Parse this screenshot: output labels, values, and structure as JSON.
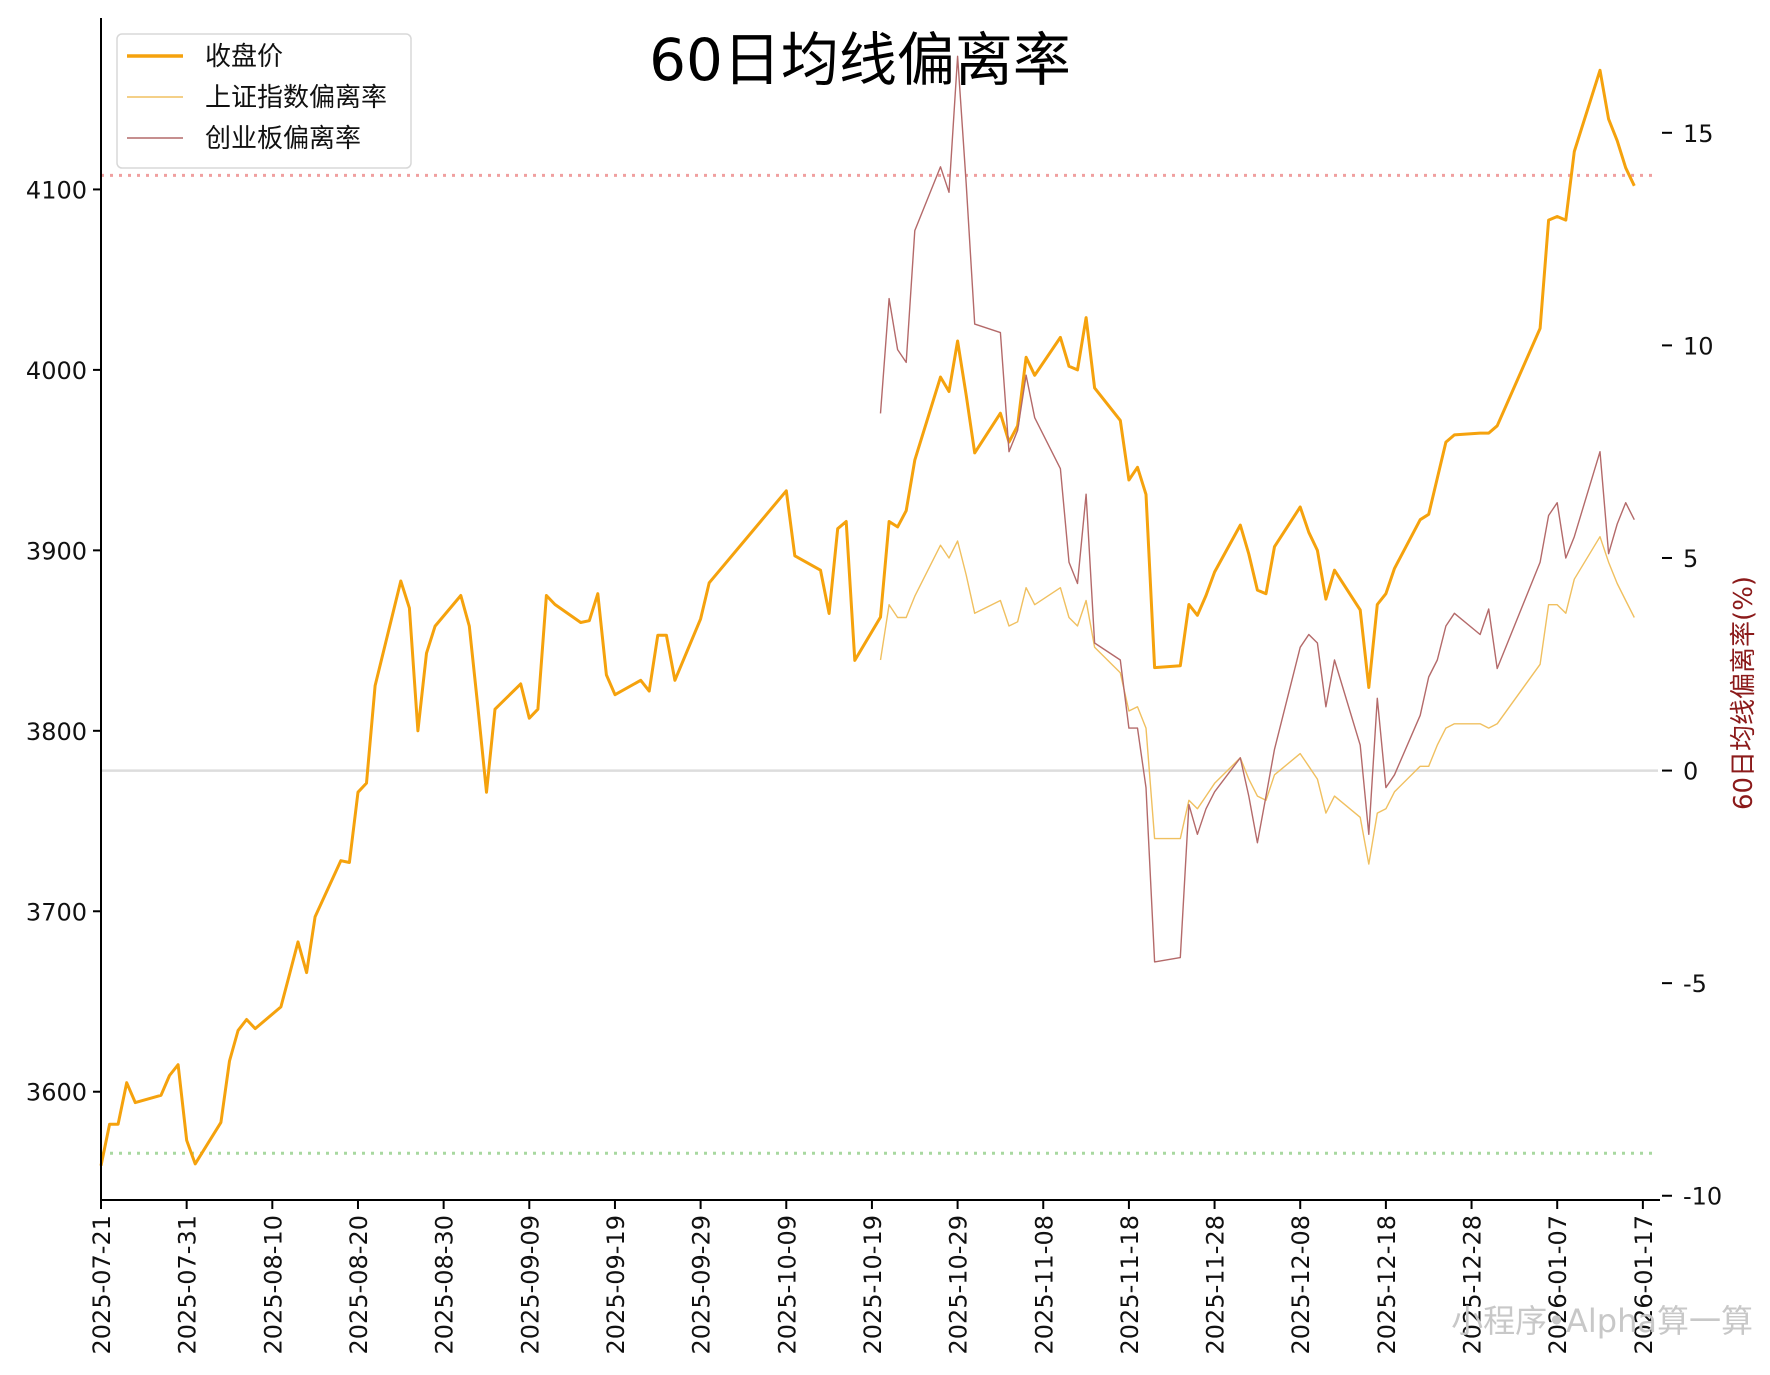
{
  "chart_data": {
    "type": "line",
    "title": "60日均线偏离率",
    "ylabel_right": "60日均线偏离率(%)",
    "watermark": "小程序•Alpha算一算",
    "left_axis": {
      "ylim": [
        3540,
        4195
      ],
      "ticks": [
        3600,
        3700,
        3800,
        3900,
        4000,
        4100
      ]
    },
    "right_axis": {
      "ylim": [
        -10.1,
        17.7
      ],
      "ticks": [
        15,
        10,
        5,
        0,
        -5,
        -10
      ]
    },
    "x_axis": {
      "start": "2025-07-21",
      "end": "2026-01-19",
      "ticks": [
        "2025-07-21",
        "2025-07-31",
        "2025-08-10",
        "2025-08-20",
        "2025-08-30",
        "2025-09-09",
        "2025-09-19",
        "2025-09-29",
        "2025-10-09",
        "2025-10-19",
        "2025-10-29",
        "2025-11-08",
        "2025-11-18",
        "2025-11-28",
        "2025-12-08",
        "2025-12-18",
        "2025-12-28",
        "2026-01-07",
        "2026-01-17"
      ]
    },
    "legend": {
      "position": "top-left",
      "entries": [
        {
          "label": "收盘价",
          "color": "#f5a20d"
        },
        {
          "label": "上证指数偏离率",
          "color": "#f0c060"
        },
        {
          "label": "创业板偏离率",
          "color": "#b46a6a"
        }
      ]
    },
    "reference_lines": [
      {
        "axis": "right",
        "value": 14.0,
        "color": "#f0a0a0",
        "style": "dotted"
      },
      {
        "axis": "right",
        "value": 0,
        "color": "#dddddd",
        "style": "solid"
      },
      {
        "axis": "right",
        "value": -9.0,
        "color": "#a8d8a0",
        "style": "dotted"
      }
    ],
    "series": [
      {
        "name": "收盘价",
        "axis": "left",
        "color": "#f5a20d",
        "points": [
          [
            "2025-07-21",
            3559
          ],
          [
            "2025-07-22",
            3582
          ],
          [
            "2025-07-23",
            3582
          ],
          [
            "2025-07-24",
            3605
          ],
          [
            "2025-07-25",
            3594
          ],
          [
            "2025-07-28",
            3598
          ],
          [
            "2025-07-29",
            3609
          ],
          [
            "2025-07-30",
            3615
          ],
          [
            "2025-07-31",
            3573
          ],
          [
            "2025-08-01",
            3560
          ],
          [
            "2025-08-04",
            3583
          ],
          [
            "2025-08-05",
            3617
          ],
          [
            "2025-08-06",
            3634
          ],
          [
            "2025-08-07",
            3640
          ],
          [
            "2025-08-08",
            3635
          ],
          [
            "2025-08-11",
            3647
          ],
          [
            "2025-08-12",
            3665
          ],
          [
            "2025-08-13",
            3683
          ],
          [
            "2025-08-14",
            3666
          ],
          [
            "2025-08-15",
            3697
          ],
          [
            "2025-08-18",
            3728
          ],
          [
            "2025-08-19",
            3727
          ],
          [
            "2025-08-20",
            3766
          ],
          [
            "2025-08-21",
            3771
          ],
          [
            "2025-08-22",
            3825
          ],
          [
            "2025-08-25",
            3883
          ],
          [
            "2025-08-26",
            3868
          ],
          [
            "2025-08-27",
            3800
          ],
          [
            "2025-08-28",
            3843
          ],
          [
            "2025-08-29",
            3858
          ],
          [
            "2025-09-01",
            3875
          ],
          [
            "2025-09-02",
            3858
          ],
          [
            "2025-09-03",
            3813
          ],
          [
            "2025-09-04",
            3766
          ],
          [
            "2025-09-05",
            3812
          ],
          [
            "2025-09-08",
            3826
          ],
          [
            "2025-09-09",
            3807
          ],
          [
            "2025-09-10",
            3812
          ],
          [
            "2025-09-11",
            3875
          ],
          [
            "2025-09-12",
            3870
          ],
          [
            "2025-09-15",
            3860
          ],
          [
            "2025-09-16",
            3861
          ],
          [
            "2025-09-17",
            3876
          ],
          [
            "2025-09-18",
            3831
          ],
          [
            "2025-09-19",
            3820
          ],
          [
            "2025-09-22",
            3828
          ],
          [
            "2025-09-23",
            3822
          ],
          [
            "2025-09-24",
            3853
          ],
          [
            "2025-09-25",
            3853
          ],
          [
            "2025-09-26",
            3828
          ],
          [
            "2025-09-29",
            3862
          ],
          [
            "2025-09-30",
            3882
          ],
          [
            "2025-10-09",
            3933
          ],
          [
            "2025-10-10",
            3897
          ],
          [
            "2025-10-13",
            3889
          ],
          [
            "2025-10-14",
            3865
          ],
          [
            "2025-10-15",
            3912
          ],
          [
            "2025-10-16",
            3916
          ],
          [
            "2025-10-17",
            3839
          ],
          [
            "2025-10-20",
            3863
          ],
          [
            "2025-10-21",
            3916
          ],
          [
            "2025-10-22",
            3913
          ],
          [
            "2025-10-23",
            3922
          ],
          [
            "2025-10-24",
            3950
          ],
          [
            "2025-10-27",
            3996
          ],
          [
            "2025-10-28",
            3988
          ],
          [
            "2025-10-29",
            4016
          ],
          [
            "2025-10-30",
            3986
          ],
          [
            "2025-10-31",
            3954
          ],
          [
            "2025-11-03",
            3976
          ],
          [
            "2025-11-04",
            3960
          ],
          [
            "2025-11-05",
            3969
          ],
          [
            "2025-11-06",
            4007
          ],
          [
            "2025-11-07",
            3997
          ],
          [
            "2025-11-10",
            4018
          ],
          [
            "2025-11-11",
            4002
          ],
          [
            "2025-11-12",
            4000
          ],
          [
            "2025-11-13",
            4029
          ],
          [
            "2025-11-14",
            3990
          ],
          [
            "2025-11-17",
            3972
          ],
          [
            "2025-11-18",
            3939
          ],
          [
            "2025-11-19",
            3946
          ],
          [
            "2025-11-20",
            3931
          ],
          [
            "2025-11-21",
            3835
          ],
          [
            "2025-11-24",
            3836
          ],
          [
            "2025-11-25",
            3870
          ],
          [
            "2025-11-26",
            3864
          ],
          [
            "2025-11-27",
            3875
          ],
          [
            "2025-11-28",
            3888
          ],
          [
            "2025-12-01",
            3914
          ],
          [
            "2025-12-02",
            3898
          ],
          [
            "2025-12-03",
            3878
          ],
          [
            "2025-12-04",
            3876
          ],
          [
            "2025-12-05",
            3902
          ],
          [
            "2025-12-08",
            3924
          ],
          [
            "2025-12-09",
            3910
          ],
          [
            "2025-12-10",
            3900
          ],
          [
            "2025-12-11",
            3873
          ],
          [
            "2025-12-12",
            3889
          ],
          [
            "2025-12-15",
            3867
          ],
          [
            "2025-12-16",
            3824
          ],
          [
            "2025-12-17",
            3870
          ],
          [
            "2025-12-18",
            3876
          ],
          [
            "2025-12-19",
            3890
          ],
          [
            "2025-12-22",
            3917
          ],
          [
            "2025-12-23",
            3920
          ],
          [
            "2025-12-24",
            3940
          ],
          [
            "2025-12-25",
            3960
          ],
          [
            "2025-12-26",
            3964
          ],
          [
            "2025-12-29",
            3965
          ],
          [
            "2025-12-30",
            3965
          ],
          [
            "2025-12-31",
            3969
          ],
          [
            "2026-01-05",
            4023
          ],
          [
            "2026-01-06",
            4083
          ],
          [
            "2026-01-07",
            4085
          ],
          [
            "2026-01-08",
            4083
          ],
          [
            "2026-01-09",
            4121
          ],
          [
            "2026-01-12",
            4166
          ],
          [
            "2026-01-13",
            4139
          ],
          [
            "2026-01-14",
            4127
          ],
          [
            "2026-01-15",
            4112
          ],
          [
            "2026-01-16",
            4102
          ]
        ]
      },
      {
        "name": "上证指数偏离率",
        "axis": "right",
        "color": "#f0c060",
        "points": [
          [
            "2025-10-20",
            2.6
          ],
          [
            "2025-10-21",
            3.9
          ],
          [
            "2025-10-22",
            3.6
          ],
          [
            "2025-10-23",
            3.6
          ],
          [
            "2025-10-24",
            4.1
          ],
          [
            "2025-10-27",
            5.3
          ],
          [
            "2025-10-28",
            5.0
          ],
          [
            "2025-10-29",
            5.4
          ],
          [
            "2025-10-30",
            4.6
          ],
          [
            "2025-10-31",
            3.7
          ],
          [
            "2025-11-03",
            4.0
          ],
          [
            "2025-11-04",
            3.4
          ],
          [
            "2025-11-05",
            3.5
          ],
          [
            "2025-11-06",
            4.3
          ],
          [
            "2025-11-07",
            3.9
          ],
          [
            "2025-11-10",
            4.3
          ],
          [
            "2025-11-11",
            3.6
          ],
          [
            "2025-11-12",
            3.4
          ],
          [
            "2025-11-13",
            4.0
          ],
          [
            "2025-11-14",
            2.9
          ],
          [
            "2025-11-17",
            2.3
          ],
          [
            "2025-11-18",
            1.4
          ],
          [
            "2025-11-19",
            1.5
          ],
          [
            "2025-11-20",
            1.0
          ],
          [
            "2025-11-21",
            -1.6
          ],
          [
            "2025-11-24",
            -1.6
          ],
          [
            "2025-11-25",
            -0.7
          ],
          [
            "2025-11-26",
            -0.9
          ],
          [
            "2025-11-27",
            -0.6
          ],
          [
            "2025-11-28",
            -0.3
          ],
          [
            "2025-12-01",
            0.3
          ],
          [
            "2025-12-02",
            -0.2
          ],
          [
            "2025-12-03",
            -0.6
          ],
          [
            "2025-12-04",
            -0.7
          ],
          [
            "2025-12-05",
            -0.1
          ],
          [
            "2025-12-08",
            0.4
          ],
          [
            "2025-12-09",
            0.1
          ],
          [
            "2025-12-10",
            -0.2
          ],
          [
            "2025-12-11",
            -1.0
          ],
          [
            "2025-12-12",
            -0.6
          ],
          [
            "2025-12-15",
            -1.1
          ],
          [
            "2025-12-16",
            -2.2
          ],
          [
            "2025-12-17",
            -1.0
          ],
          [
            "2025-12-18",
            -0.9
          ],
          [
            "2025-12-19",
            -0.5
          ],
          [
            "2025-12-22",
            0.1
          ],
          [
            "2025-12-23",
            0.1
          ],
          [
            "2025-12-24",
            0.6
          ],
          [
            "2025-12-25",
            1.0
          ],
          [
            "2025-12-26",
            1.1
          ],
          [
            "2025-12-29",
            1.1
          ],
          [
            "2025-12-30",
            1.0
          ],
          [
            "2025-12-31",
            1.1
          ],
          [
            "2026-01-05",
            2.5
          ],
          [
            "2026-01-06",
            3.9
          ],
          [
            "2026-01-07",
            3.9
          ],
          [
            "2026-01-08",
            3.7
          ],
          [
            "2026-01-09",
            4.5
          ],
          [
            "2026-01-12",
            5.5
          ],
          [
            "2026-01-13",
            4.9
          ],
          [
            "2026-01-14",
            4.4
          ],
          [
            "2026-01-15",
            4.0
          ],
          [
            "2026-01-16",
            3.6
          ]
        ]
      },
      {
        "name": "创业板偏离率",
        "axis": "right",
        "color": "#b46a6a",
        "points": [
          [
            "2025-10-20",
            8.4
          ],
          [
            "2025-10-21",
            11.1
          ],
          [
            "2025-10-22",
            9.9
          ],
          [
            "2025-10-23",
            9.6
          ],
          [
            "2025-10-24",
            12.7
          ],
          [
            "2025-10-27",
            14.2
          ],
          [
            "2025-10-28",
            13.6
          ],
          [
            "2025-10-29",
            16.8
          ],
          [
            "2025-10-30",
            13.8
          ],
          [
            "2025-10-31",
            10.5
          ],
          [
            "2025-11-03",
            10.3
          ],
          [
            "2025-11-04",
            7.5
          ],
          [
            "2025-11-05",
            8.0
          ],
          [
            "2025-11-06",
            9.3
          ],
          [
            "2025-11-07",
            8.3
          ],
          [
            "2025-11-10",
            7.1
          ],
          [
            "2025-11-11",
            4.9
          ],
          [
            "2025-11-12",
            4.4
          ],
          [
            "2025-11-13",
            6.5
          ],
          [
            "2025-11-14",
            3.0
          ],
          [
            "2025-11-17",
            2.6
          ],
          [
            "2025-11-18",
            1.0
          ],
          [
            "2025-11-19",
            1.0
          ],
          [
            "2025-11-20",
            -0.4
          ],
          [
            "2025-11-21",
            -4.5
          ],
          [
            "2025-11-24",
            -4.4
          ],
          [
            "2025-11-25",
            -0.8
          ],
          [
            "2025-11-26",
            -1.5
          ],
          [
            "2025-11-27",
            -0.9
          ],
          [
            "2025-11-28",
            -0.5
          ],
          [
            "2025-12-01",
            0.3
          ],
          [
            "2025-12-02",
            -0.6
          ],
          [
            "2025-12-03",
            -1.7
          ],
          [
            "2025-12-04",
            -0.6
          ],
          [
            "2025-12-05",
            0.5
          ],
          [
            "2025-12-08",
            2.9
          ],
          [
            "2025-12-09",
            3.2
          ],
          [
            "2025-12-10",
            3.0
          ],
          [
            "2025-12-11",
            1.5
          ],
          [
            "2025-12-12",
            2.6
          ],
          [
            "2025-12-15",
            0.6
          ],
          [
            "2025-12-16",
            -1.5
          ],
          [
            "2025-12-17",
            1.7
          ],
          [
            "2025-12-18",
            -0.4
          ],
          [
            "2025-12-19",
            -0.1
          ],
          [
            "2025-12-22",
            1.3
          ],
          [
            "2025-12-23",
            2.2
          ],
          [
            "2025-12-24",
            2.6
          ],
          [
            "2025-12-25",
            3.4
          ],
          [
            "2025-12-26",
            3.7
          ],
          [
            "2025-12-29",
            3.2
          ],
          [
            "2025-12-30",
            3.8
          ],
          [
            "2025-12-31",
            2.4
          ],
          [
            "2026-01-05",
            4.9
          ],
          [
            "2026-01-06",
            6.0
          ],
          [
            "2026-01-07",
            6.3
          ],
          [
            "2026-01-08",
            5.0
          ],
          [
            "2026-01-09",
            5.5
          ],
          [
            "2026-01-12",
            7.5
          ],
          [
            "2026-01-13",
            5.1
          ],
          [
            "2026-01-14",
            5.8
          ],
          [
            "2026-01-15",
            6.3
          ],
          [
            "2026-01-16",
            5.9
          ]
        ]
      }
    ]
  }
}
